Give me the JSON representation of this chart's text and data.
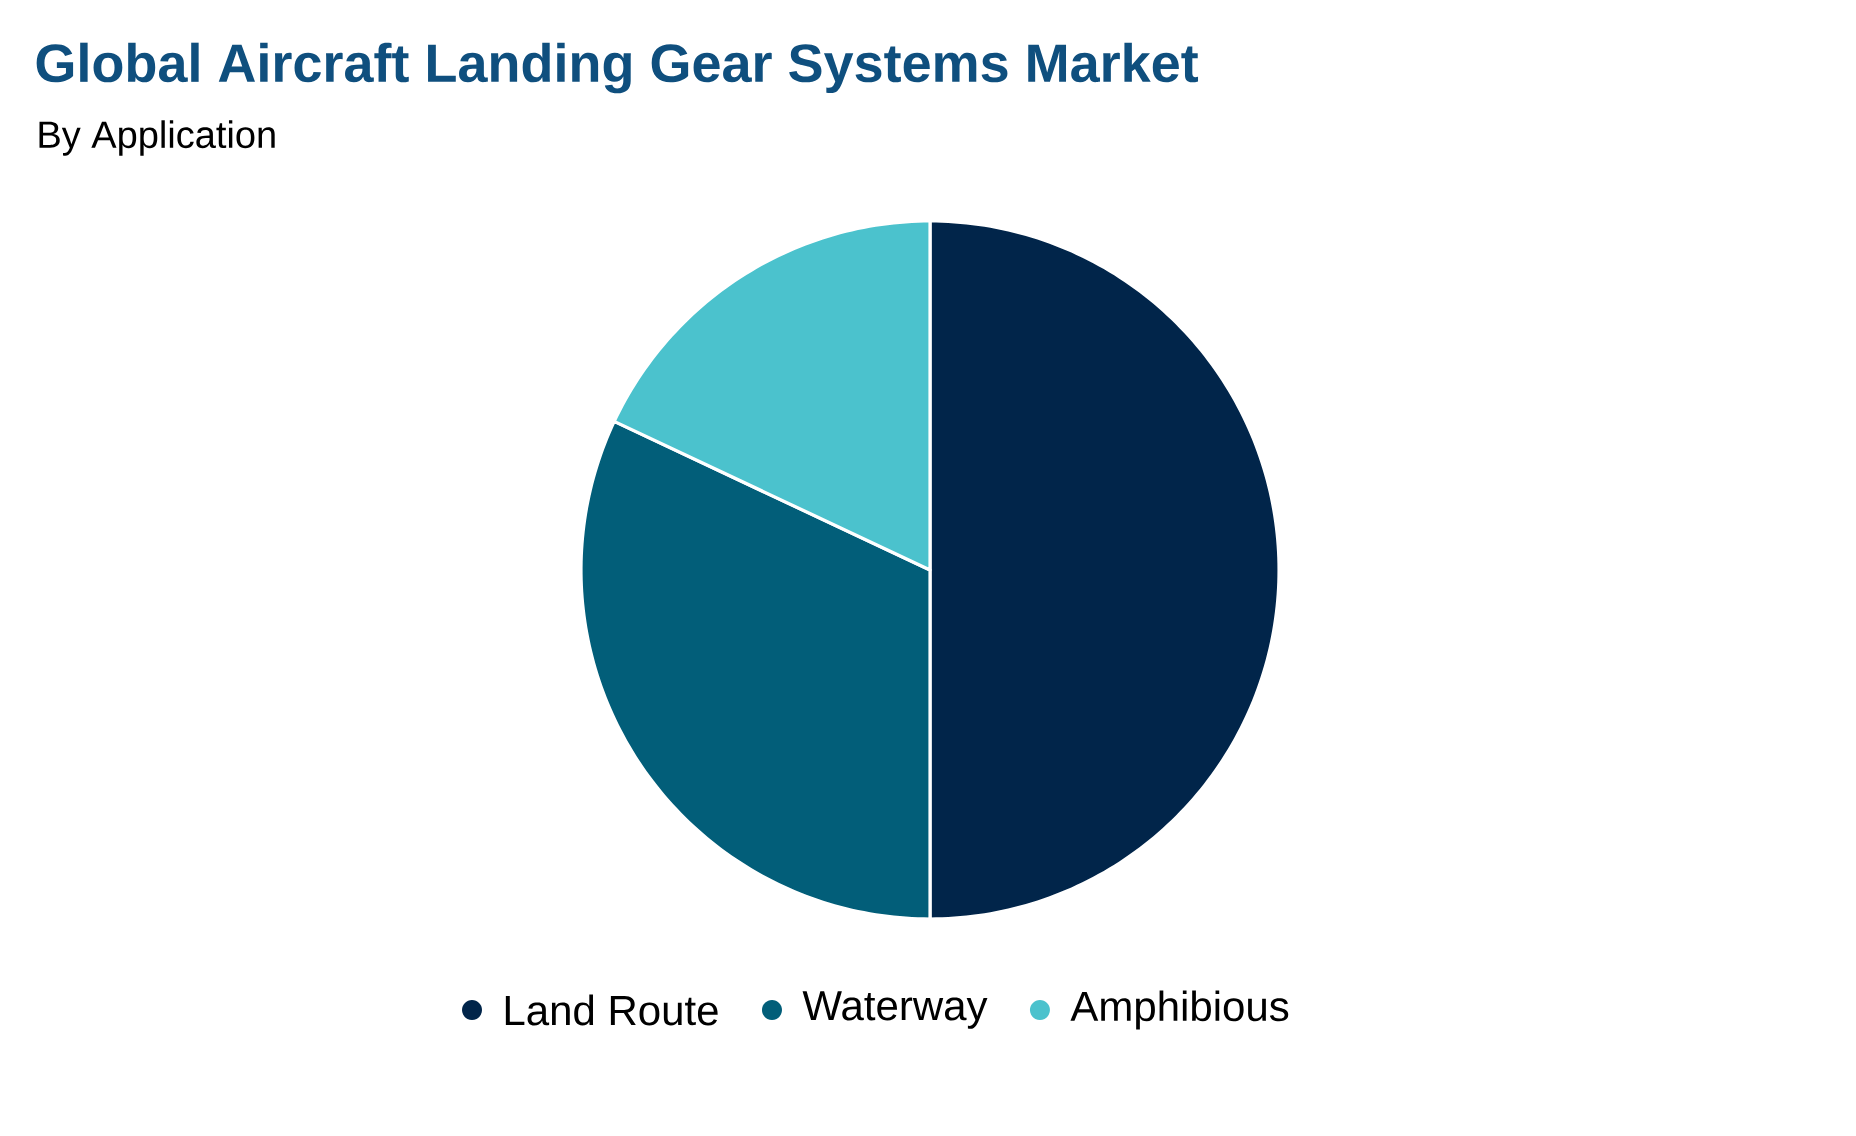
{
  "chart_data": {
    "type": "pie",
    "title": "Global Aircraft Landing Gear Systems Market",
    "subtitle": "By Application",
    "categories": [
      "Land Route",
      "Waterway",
      "Amphibious"
    ],
    "values": [
      50,
      32,
      18
    ],
    "colors": [
      "#01254a",
      "#025e79",
      "#4bc2cd"
    ],
    "legend": "bottom"
  }
}
